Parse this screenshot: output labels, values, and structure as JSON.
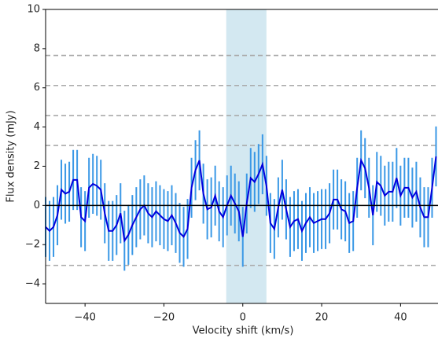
{
  "chart_data": {
    "type": "errorbar-line",
    "x_label": "Velocity shift (km/s)",
    "y_label": "Flux density (mJy)",
    "x": [
      -50,
      -49,
      -48,
      -47,
      -46,
      -45,
      -44,
      -43,
      -42,
      -41,
      -40,
      -39,
      -38,
      -37,
      -36,
      -35,
      -34,
      -33,
      -32,
      -31,
      -30,
      -29,
      -28,
      -27,
      -26,
      -25,
      -24,
      -23,
      -22,
      -21,
      -20,
      -19,
      -18,
      -17,
      -16,
      -15,
      -14,
      -13,
      -12,
      -11,
      -10,
      -9,
      -8,
      -7,
      -6,
      -5,
      -4,
      -3,
      -2,
      -1,
      0,
      1,
      2,
      3,
      4,
      5,
      6,
      7,
      8,
      9,
      10,
      11,
      12,
      13,
      14,
      15,
      16,
      17,
      18,
      19,
      20,
      21,
      22,
      23,
      24,
      25,
      26,
      27,
      28,
      29,
      30,
      31,
      32,
      33,
      34,
      35,
      36,
      37,
      38,
      39,
      40,
      41,
      42,
      43,
      44,
      45,
      46,
      47,
      48,
      49
    ],
    "series": [
      {
        "color": "#0000dd",
        "errorbar_color": "#3a98e6",
        "error": 1.53,
        "values": [
          -1.1,
          -1.3,
          -1.1,
          -0.5,
          0.8,
          0.6,
          0.7,
          1.3,
          1.3,
          -0.6,
          -0.8,
          0.9,
          1.1,
          1.0,
          0.8,
          -0.4,
          -1.3,
          -1.3,
          -1.0,
          -0.4,
          -1.8,
          -1.5,
          -1.0,
          -0.6,
          -0.2,
          0.0,
          -0.4,
          -0.6,
          -0.3,
          -0.5,
          -0.7,
          -0.8,
          -0.5,
          -0.9,
          -1.4,
          -1.6,
          -1.2,
          0.9,
          1.8,
          2.3,
          0.6,
          -0.2,
          -0.1,
          0.5,
          -0.3,
          -0.6,
          0.0,
          0.5,
          0.1,
          -0.3,
          -1.6,
          0.1,
          1.4,
          1.2,
          1.6,
          2.1,
          1.0,
          -0.9,
          -1.2,
          -0.1,
          0.8,
          -0.2,
          -1.1,
          -0.8,
          -0.7,
          -1.3,
          -0.9,
          -0.6,
          -0.9,
          -0.8,
          -0.7,
          -0.7,
          -0.4,
          0.3,
          0.3,
          -0.2,
          -0.3,
          -0.9,
          -0.8,
          0.9,
          2.3,
          1.9,
          0.9,
          -0.5,
          1.2,
          1.0,
          0.5,
          0.7,
          0.7,
          1.4,
          0.5,
          0.9,
          0.9,
          0.4,
          0.7,
          -0.1,
          -0.6,
          -0.6,
          0.9,
          2.5
        ]
      }
    ],
    "xlim": [
      -50,
      49.5
    ],
    "ylim": [
      -5,
      10
    ],
    "xticks": [
      {
        "value": -40,
        "label": "−40"
      },
      {
        "value": -20,
        "label": "−20"
      },
      0,
      20,
      40
    ],
    "yticks": [
      {
        "value": -4,
        "label": "−4"
      },
      {
        "value": -2,
        "label": "−2"
      },
      0,
      2,
      4,
      6,
      8,
      10
    ],
    "shaded_band": [
      -4.2,
      6.0
    ],
    "shade_color": "#d3e8f1",
    "dashed_lines": [
      7.65,
      6.12,
      4.59,
      3.06,
      -3.06
    ],
    "zero_line": 0
  }
}
